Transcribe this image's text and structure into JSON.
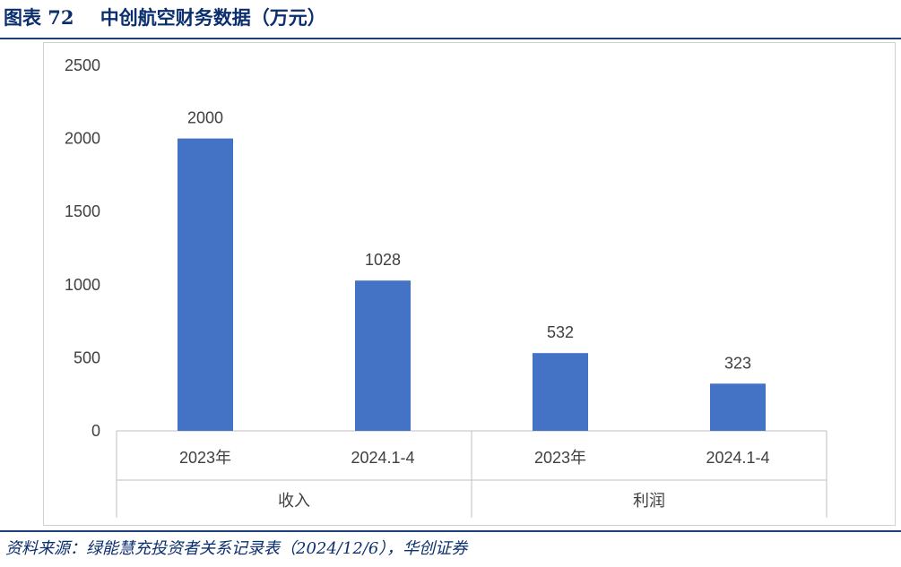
{
  "header": {
    "title": "图表 72    中创航空财务数据（万元）"
  },
  "footer": {
    "source": "资料来源：绿能慧充投资者关系记录表（2024/12/6），华创证券"
  },
  "colors": {
    "bar": "#4472c4",
    "title": "#0b2f6e",
    "rule": "#1f3f7a",
    "axis": "#bfbfbf"
  },
  "chart_data": {
    "type": "bar",
    "ylim": [
      0,
      2500
    ],
    "yticks": [
      0,
      500,
      1000,
      1500,
      2000,
      2500
    ],
    "grid": false,
    "groups": [
      {
        "name": "收入",
        "categories": [
          "2023年",
          "2024.1-4"
        ],
        "values": [
          2000,
          1028
        ]
      },
      {
        "name": "利润",
        "categories": [
          "2023年",
          "2024.1-4"
        ],
        "values": [
          532,
          323
        ]
      }
    ]
  }
}
